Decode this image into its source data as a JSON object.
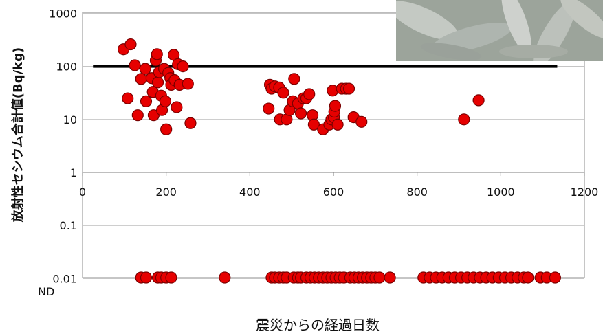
{
  "chart_data": {
    "type": "scatter",
    "title": "",
    "xlabel": "震災からの経過日数",
    "ylabel": "放射性セシウム合計値(Bq/kg)",
    "xlim": [
      0,
      1200
    ],
    "ylim": [
      0.01,
      1000
    ],
    "y_scale": "log",
    "x_ticks": [
      "0",
      "200",
      "400",
      "600",
      "800",
      "1000",
      "1200"
    ],
    "y_ticks": [
      "1000",
      "100",
      "10",
      "1",
      "0.1",
      "0.01"
    ],
    "nd_label": "ND",
    "reference_line": {
      "y": 100,
      "x": [
        25,
        1135
      ]
    },
    "grid": true,
    "series": [
      {
        "points": [
          [
            98,
            210
          ],
          [
            115,
            260
          ],
          [
            108,
            25
          ],
          [
            125,
            105
          ],
          [
            132,
            12
          ],
          [
            140,
            58
          ],
          [
            150,
            90
          ],
          [
            152,
            22
          ],
          [
            165,
            60
          ],
          [
            168,
            33
          ],
          [
            170,
            12
          ],
          [
            175,
            130
          ],
          [
            178,
            170
          ],
          [
            180,
            50
          ],
          [
            183,
            78
          ],
          [
            188,
            28
          ],
          [
            190,
            15
          ],
          [
            195,
            90
          ],
          [
            198,
            22
          ],
          [
            200,
            6.5
          ],
          [
            205,
            75
          ],
          [
            210,
            60
          ],
          [
            212,
            45
          ],
          [
            218,
            165
          ],
          [
            220,
            55
          ],
          [
            225,
            17
          ],
          [
            228,
            110
          ],
          [
            232,
            45
          ],
          [
            240,
            100
          ],
          [
            252,
            47
          ],
          [
            258,
            8.5
          ],
          [
            445,
            16
          ],
          [
            448,
            45
          ],
          [
            452,
            38
          ],
          [
            460,
            42
          ],
          [
            470,
            40
          ],
          [
            472,
            10
          ],
          [
            480,
            32
          ],
          [
            488,
            10
          ],
          [
            495,
            15
          ],
          [
            503,
            22
          ],
          [
            506,
            58
          ],
          [
            515,
            20
          ],
          [
            522,
            13
          ],
          [
            528,
            25
          ],
          [
            535,
            25
          ],
          [
            542,
            30
          ],
          [
            550,
            12
          ],
          [
            553,
            8
          ],
          [
            575,
            6.5
          ],
          [
            590,
            8
          ],
          [
            595,
            10
          ],
          [
            598,
            35
          ],
          [
            601,
            11
          ],
          [
            602,
            14
          ],
          [
            604,
            18
          ],
          [
            610,
            8
          ],
          [
            620,
            38
          ],
          [
            630,
            38
          ],
          [
            637,
            38
          ],
          [
            648,
            11
          ],
          [
            667,
            9
          ],
          [
            912,
            10
          ],
          [
            947,
            23
          ]
        ],
        "nd_x": [
          140,
          152,
          180,
          188,
          200,
          212,
          340,
          452,
          460,
          470,
          480,
          488,
          505,
          515,
          522,
          535,
          545,
          555,
          565,
          575,
          585,
          595,
          605,
          615,
          625,
          640,
          650,
          660,
          670,
          680,
          690,
          700,
          710,
          735,
          815,
          830,
          845,
          860,
          875,
          890,
          905,
          920,
          935,
          950,
          965,
          980,
          995,
          1010,
          1025,
          1040,
          1055,
          1065,
          1095,
          1110,
          1130
        ]
      }
    ],
    "photo_icon": "fish-photo"
  }
}
